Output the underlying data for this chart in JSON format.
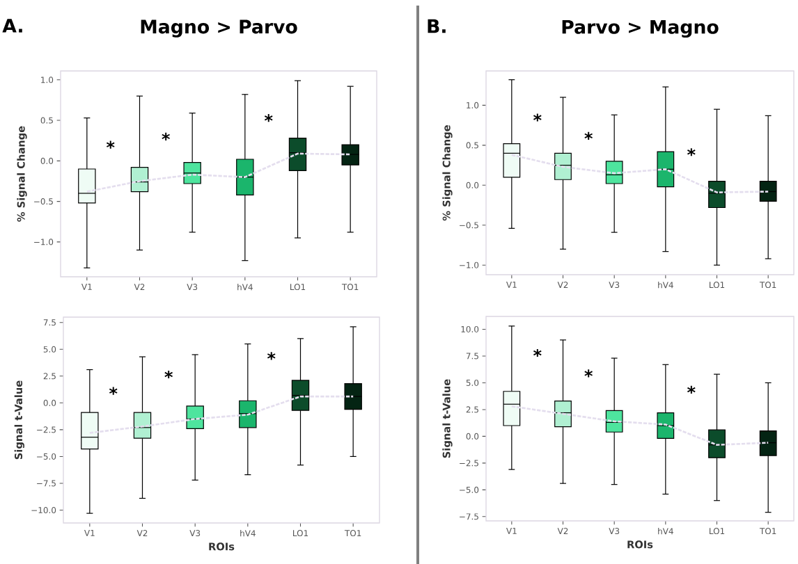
{
  "chart_data": [
    {
      "type": "box",
      "title": "Magno > Parvo",
      "ylabel": "% Signal Change",
      "categories": [
        "V1",
        "V2",
        "V3",
        "hV4",
        "LO1",
        "TO1"
      ],
      "colors": [
        "#effcf5",
        "#b0f0d2",
        "#4ee49e",
        "#1bb56c",
        "#0c4c2b",
        "#042413"
      ],
      "boxes": [
        {
          "low": -1.32,
          "q1": -0.52,
          "median": -0.4,
          "q3": -0.1,
          "high": 0.53
        },
        {
          "low": -1.1,
          "q1": -0.38,
          "median": -0.26,
          "q3": -0.08,
          "high": 0.8
        },
        {
          "low": -0.88,
          "q1": -0.28,
          "median": -0.15,
          "q3": -0.02,
          "high": 0.59
        },
        {
          "low": -1.23,
          "q1": -0.42,
          "median": -0.2,
          "q3": 0.02,
          "high": 0.82
        },
        {
          "low": -0.95,
          "q1": -0.12,
          "median": 0.1,
          "q3": 0.28,
          "high": 0.99
        },
        {
          "low": -0.88,
          "q1": -0.05,
          "median": 0.08,
          "q3": 0.2,
          "high": 0.92
        }
      ],
      "series": [
        {
          "type": "line",
          "color": "#e4deee",
          "line_style": "dashed",
          "values": [
            -0.38,
            -0.25,
            -0.17,
            -0.2,
            0.09,
            0.08
          ]
        }
      ],
      "ylim": [
        -1.43,
        1.11
      ],
      "yticks": [
        {
          "value": -1.0,
          "label": "−1.0"
        },
        {
          "value": -0.5,
          "label": "−0.5"
        },
        {
          "value": 0.0,
          "label": "0.0"
        },
        {
          "value": 0.5,
          "label": "0.5"
        },
        {
          "value": 1.0,
          "label": "1.0"
        }
      ],
      "annotations": [
        "A.",
        "*",
        "*",
        "*"
      ]
    },
    {
      "type": "box",
      "title": "Parvo > Magno",
      "ylabel": "% Signal Change",
      "categories": [
        "V1",
        "V2",
        "V3",
        "hV4",
        "LO1",
        "TO1"
      ],
      "colors": [
        "#effcf5",
        "#b0f0d2",
        "#4ee49e",
        "#1bb56c",
        "#0c4c2b",
        "#042413"
      ],
      "boxes": [
        {
          "low": -0.54,
          "q1": 0.1,
          "median": 0.4,
          "q3": 0.52,
          "high": 1.32
        },
        {
          "low": -0.8,
          "q1": 0.07,
          "median": 0.25,
          "q3": 0.4,
          "high": 1.1
        },
        {
          "low": -0.59,
          "q1": 0.02,
          "median": 0.13,
          "q3": 0.3,
          "high": 0.88
        },
        {
          "low": -0.83,
          "q1": -0.02,
          "median": 0.2,
          "q3": 0.42,
          "high": 1.23
        },
        {
          "low": -1.0,
          "q1": -0.28,
          "median": -0.1,
          "q3": 0.05,
          "high": 0.95
        },
        {
          "low": -0.92,
          "q1": -0.2,
          "median": -0.08,
          "q3": 0.05,
          "high": 0.87
        }
      ],
      "series": [
        {
          "type": "line",
          "color": "#e4deee",
          "line_style": "dashed",
          "values": [
            0.38,
            0.23,
            0.15,
            0.2,
            -0.09,
            -0.08
          ]
        }
      ],
      "ylim": [
        -1.12,
        1.43
      ],
      "yticks": [
        {
          "value": -1.0,
          "label": "−1.0"
        },
        {
          "value": -0.5,
          "label": "−0.5"
        },
        {
          "value": 0.0,
          "label": "0.0"
        },
        {
          "value": 0.5,
          "label": "0.5"
        },
        {
          "value": 1.0,
          "label": "1.0"
        }
      ],
      "annotations": [
        "B.",
        "*",
        "*",
        "*"
      ]
    },
    {
      "type": "box",
      "xlabel": "ROIs",
      "ylabel": "Signal t-Value",
      "categories": [
        "V1",
        "V2",
        "V3",
        "hV4",
        "LO1",
        "TO1"
      ],
      "colors": [
        "#effcf5",
        "#b0f0d2",
        "#4ee49e",
        "#1bb56c",
        "#0c4c2b",
        "#042413"
      ],
      "boxes": [
        {
          "low": -10.3,
          "q1": -4.3,
          "median": -3.2,
          "q3": -0.9,
          "high": 3.1
        },
        {
          "low": -8.9,
          "q1": -3.3,
          "median": -2.3,
          "q3": -0.9,
          "high": 4.3
        },
        {
          "low": -7.2,
          "q1": -2.4,
          "median": -1.5,
          "q3": -0.3,
          "high": 4.5
        },
        {
          "low": -6.7,
          "q1": -2.3,
          "median": -1.0,
          "q3": 0.2,
          "high": 5.5
        },
        {
          "low": -5.8,
          "q1": -0.7,
          "median": 0.7,
          "q3": 2.1,
          "high": 6.0
        },
        {
          "low": -5.0,
          "q1": -0.6,
          "median": 0.6,
          "q3": 1.8,
          "high": 7.1
        }
      ],
      "series": [
        {
          "type": "line",
          "color": "#e4deee",
          "line_style": "dashed",
          "values": [
            -2.8,
            -2.2,
            -1.5,
            -1.1,
            0.6,
            0.6
          ]
        }
      ],
      "ylim": [
        -11.2,
        8.0
      ],
      "yticks": [
        {
          "value": -10.0,
          "label": "−10.0"
        },
        {
          "value": -7.5,
          "label": "−7.5"
        },
        {
          "value": -5.0,
          "label": "−5.0"
        },
        {
          "value": -2.5,
          "label": "−2.5"
        },
        {
          "value": 0.0,
          "label": "0.0"
        },
        {
          "value": 2.5,
          "label": "2.5"
        },
        {
          "value": 5.0,
          "label": "5.0"
        },
        {
          "value": 7.5,
          "label": "7.5"
        }
      ],
      "annotations": [
        "*",
        "*",
        "*"
      ]
    },
    {
      "type": "box",
      "xlabel": "ROIs",
      "ylabel": "Signal t-Value",
      "categories": [
        "V1",
        "V2",
        "V3",
        "hV4",
        "LO1",
        "TO1"
      ],
      "colors": [
        "#effcf5",
        "#b0f0d2",
        "#4ee49e",
        "#1bb56c",
        "#0c4c2b",
        "#042413"
      ],
      "boxes": [
        {
          "low": -3.1,
          "q1": 1.0,
          "median": 3.0,
          "q3": 4.2,
          "high": 10.3
        },
        {
          "low": -4.4,
          "q1": 0.9,
          "median": 2.2,
          "q3": 3.3,
          "high": 9.0
        },
        {
          "low": -4.5,
          "q1": 0.4,
          "median": 1.3,
          "q3": 2.4,
          "high": 7.3
        },
        {
          "low": -5.4,
          "q1": -0.2,
          "median": 1.0,
          "q3": 2.2,
          "high": 6.7
        },
        {
          "low": -6.0,
          "q1": -2.0,
          "median": -0.8,
          "q3": 0.6,
          "high": 5.8
        },
        {
          "low": -7.1,
          "q1": -1.8,
          "median": -0.6,
          "q3": 0.5,
          "high": 5.0
        }
      ],
      "series": [
        {
          "type": "line",
          "color": "#e4deee",
          "line_style": "dashed",
          "values": [
            2.8,
            2.1,
            1.4,
            1.1,
            -0.8,
            -0.6
          ]
        }
      ],
      "ylim": [
        -7.9,
        11.2
      ],
      "yticks": [
        {
          "value": -7.5,
          "label": "−7.5"
        },
        {
          "value": -5.0,
          "label": "−5.0"
        },
        {
          "value": -2.5,
          "label": "−2.5"
        },
        {
          "value": 0.0,
          "label": "0.0"
        },
        {
          "value": 2.5,
          "label": "2.5"
        },
        {
          "value": 5.0,
          "label": "5.0"
        },
        {
          "value": 7.5,
          "label": "7.5"
        },
        {
          "value": 10.0,
          "label": "10.0"
        }
      ],
      "annotations": [
        "*",
        "*",
        "*"
      ]
    }
  ]
}
